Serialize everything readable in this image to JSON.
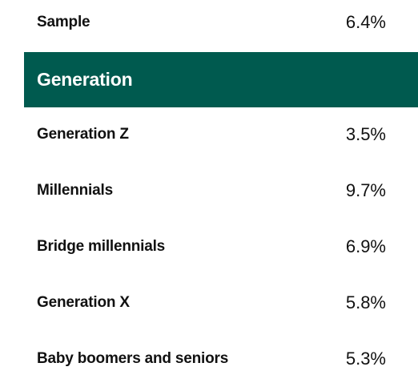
{
  "sample": {
    "label": "Sample",
    "value": "6.4%"
  },
  "section": {
    "title": "Generation"
  },
  "rows": [
    {
      "label": "Generation Z",
      "value": "3.5%"
    },
    {
      "label": "Millennials",
      "value": "9.7%"
    },
    {
      "label": "Bridge millennials",
      "value": "6.9%"
    },
    {
      "label": "Generation X",
      "value": "5.8%"
    },
    {
      "label": "Baby boomers and seniors",
      "value": "5.3%"
    }
  ],
  "colors": {
    "header_background": "#005a4f",
    "header_text": "#ffffff",
    "body_text": "#111111"
  },
  "chart_data": {
    "type": "table",
    "columns": [
      "",
      ""
    ],
    "sections": [
      {
        "title": "",
        "rows": [
          {
            "category": "Sample",
            "value": 6.4,
            "display": "6.4%"
          }
        ]
      },
      {
        "title": "Generation",
        "rows": [
          {
            "category": "Generation Z",
            "value": 3.5,
            "display": "3.5%"
          },
          {
            "category": "Millennials",
            "value": 9.7,
            "display": "9.7%"
          },
          {
            "category": "Bridge millennials",
            "value": 6.9,
            "display": "6.9%"
          },
          {
            "category": "Generation X",
            "value": 5.8,
            "display": "5.8%"
          },
          {
            "category": "Baby boomers and seniors",
            "value": 5.3,
            "display": "5.3%"
          }
        ]
      }
    ]
  }
}
